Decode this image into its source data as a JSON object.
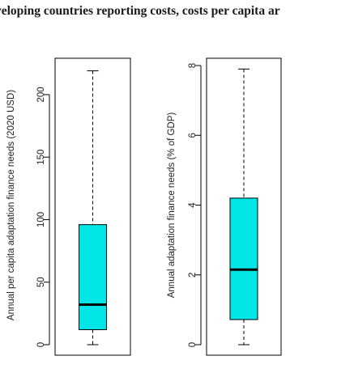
{
  "caption": "veloping countries reporting costs, costs per capita ar",
  "chart_data": [
    {
      "type": "boxplot",
      "ylabel": "Annual per capita adaptation finance needs (2020 USD)",
      "ylim": [
        0,
        220
      ],
      "yticks": [
        0,
        50,
        100,
        150,
        200
      ],
      "box_color": "#00e5e5",
      "stats": {
        "min": 0,
        "q1": 12,
        "median": 32,
        "q3": 96,
        "max": 219
      }
    },
    {
      "type": "boxplot",
      "ylabel": "Annual adaptation finance needs (% of GDP)",
      "ylim": [
        0,
        8
      ],
      "yticks": [
        0,
        2,
        4,
        6,
        8
      ],
      "box_color": "#00e5e5",
      "stats": {
        "min": 0,
        "q1": 0.72,
        "median": 2.15,
        "q3": 4.2,
        "max": 7.9
      }
    }
  ]
}
